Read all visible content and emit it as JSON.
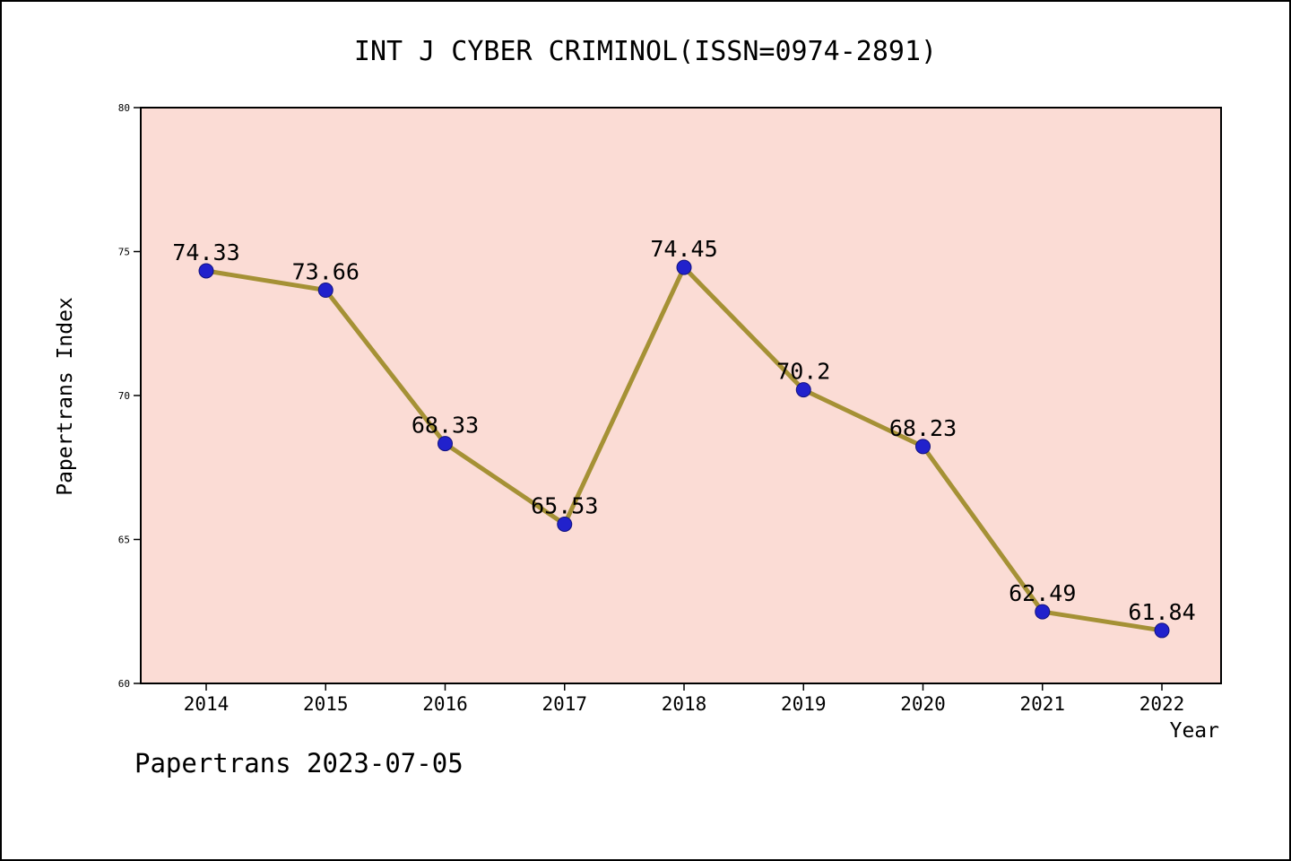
{
  "page": {
    "footer": "Papertrans 2023-07-05"
  },
  "chart_data": {
    "type": "line",
    "title": "INT J CYBER CRIMINOL(ISSN=0974-2891)",
    "xlabel": "Year",
    "ylabel": "Papertrans Index",
    "categories": [
      "2014",
      "2015",
      "2016",
      "2017",
      "2018",
      "2019",
      "2020",
      "2021",
      "2022"
    ],
    "values": [
      74.33,
      73.66,
      68.33,
      65.53,
      74.45,
      70.2,
      68.23,
      62.49,
      61.84
    ],
    "point_labels": [
      "74.33",
      "73.66",
      "68.33",
      "65.53",
      "74.45",
      "70.2",
      "68.23",
      "62.49",
      "61.84"
    ],
    "ylim": [
      60,
      80
    ],
    "yticks": [
      60,
      65,
      70,
      75,
      80
    ],
    "grid": false,
    "legend_position": "none",
    "colors": {
      "line": "#a59135",
      "marker": "#2121cc",
      "marker_edge": "#12127e",
      "plot_background": "#fbdcd5",
      "page_background": "#ffffff",
      "text": "#000000"
    }
  }
}
